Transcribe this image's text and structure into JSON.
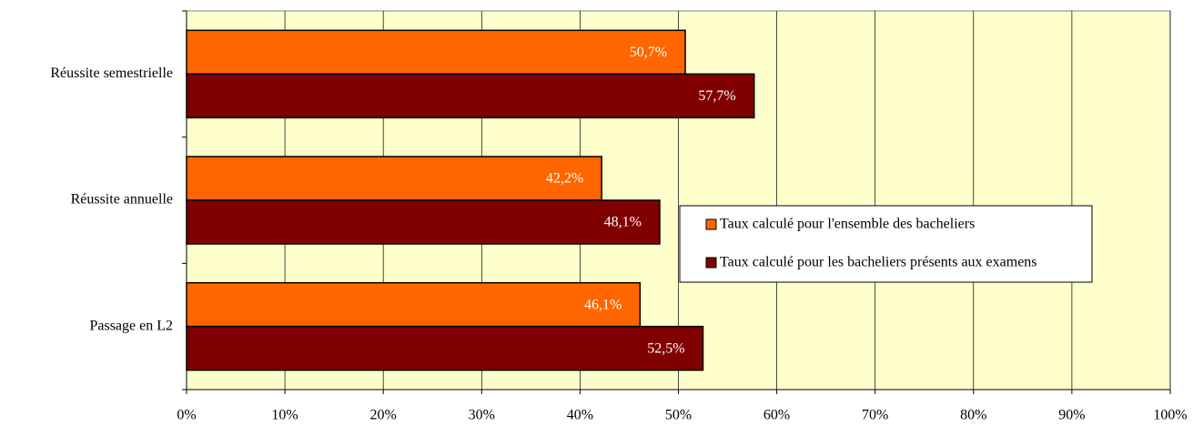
{
  "chart_data": {
    "type": "bar",
    "orientation": "horizontal",
    "categories": [
      "Réussite semestrielle",
      "Réussite annuelle",
      "Passage en L2"
    ],
    "series": [
      {
        "name": "Taux calculé pour l'ensemble des bacheliers",
        "color": "#ff6600",
        "values": [
          50.7,
          42.2,
          46.1
        ],
        "value_labels": [
          "50,7%",
          "42,2%",
          "46,1%"
        ]
      },
      {
        "name": "Taux calculé pour les bacheliers présents aux examens",
        "color": "#800000",
        "values": [
          57.7,
          48.1,
          52.5
        ],
        "value_labels": [
          "57,7%",
          "48,1%",
          "52,5%"
        ]
      }
    ],
    "xlim": [
      0,
      100
    ],
    "xticks": [
      {
        "value": 0,
        "label": "0%"
      },
      {
        "value": 10,
        "label": "10%"
      },
      {
        "value": 20,
        "label": "20%"
      },
      {
        "value": 30,
        "label": "30%"
      },
      {
        "value": 40,
        "label": "40%"
      },
      {
        "value": 50,
        "label": "50%"
      },
      {
        "value": 60,
        "label": "60%"
      },
      {
        "value": 70,
        "label": "70%"
      },
      {
        "value": 80,
        "label": "80%"
      },
      {
        "value": 90,
        "label": "90%"
      },
      {
        "value": 100,
        "label": "100%"
      }
    ],
    "grid": true,
    "background": "#ffffcc"
  }
}
